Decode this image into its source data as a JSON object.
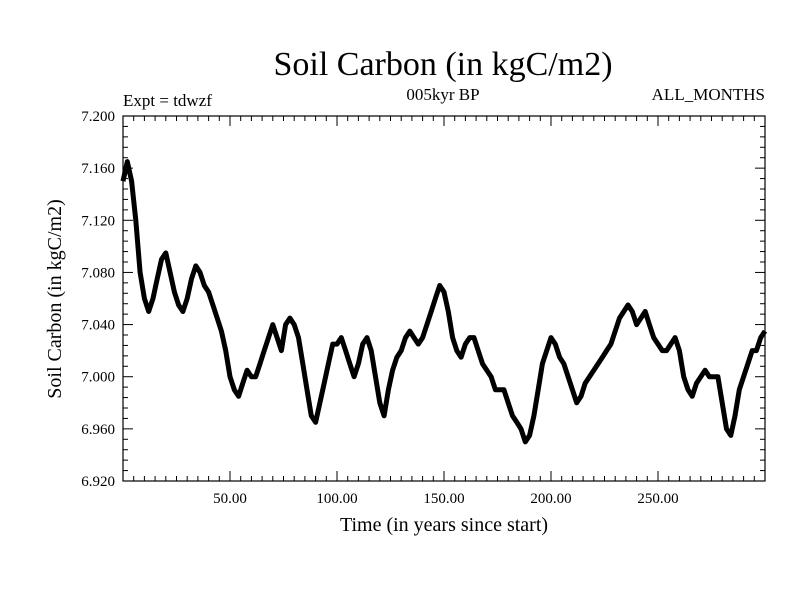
{
  "chart_data": {
    "type": "line",
    "title": "Soil Carbon (in kgC/m2)",
    "left_note": "Expt = tdwzf",
    "center_note": "005kyr BP",
    "right_note": "ALL_MONTHS",
    "xlabel": "Time (in years since start)",
    "ylabel": "Soil Carbon (in kgC/m2)",
    "xlim": [
      0,
      300
    ],
    "ylim": [
      6.92,
      7.2
    ],
    "x_ticks": [
      50,
      100,
      150,
      200,
      250
    ],
    "x_tick_labels": [
      "50.00",
      "100.00",
      "150.00",
      "200.00",
      "250.00"
    ],
    "y_ticks": [
      6.92,
      6.96,
      7.0,
      7.04,
      7.08,
      7.12,
      7.16,
      7.2
    ],
    "y_tick_labels": [
      "6.920",
      "6.960",
      "7.000",
      "7.040",
      "7.080",
      "7.120",
      "7.160",
      "7.200"
    ],
    "grid": false,
    "line_color": "#000000",
    "series": [
      {
        "x": [
          0,
          2,
          4,
          6,
          8,
          10,
          12,
          14,
          16,
          18,
          20,
          22,
          24,
          26,
          28,
          30,
          32,
          34,
          36,
          38,
          40,
          42,
          44,
          46,
          48,
          50,
          52,
          54,
          56,
          58,
          60,
          62,
          64,
          66,
          68,
          70,
          72,
          74,
          76,
          78,
          80,
          82,
          84,
          86,
          88,
          90,
          92,
          94,
          96,
          98,
          100,
          102,
          104,
          106,
          108,
          110,
          112,
          114,
          116,
          118,
          120,
          122,
          124,
          126,
          128,
          130,
          132,
          134,
          136,
          138,
          140,
          142,
          144,
          146,
          148,
          150,
          152,
          154,
          156,
          158,
          160,
          162,
          164,
          166,
          168,
          170,
          172,
          174,
          176,
          178,
          180,
          182,
          184,
          186,
          188,
          190,
          192,
          194,
          196,
          198,
          200,
          202,
          204,
          206,
          208,
          210,
          212,
          214,
          216,
          218,
          220,
          222,
          224,
          226,
          228,
          230,
          232,
          234,
          236,
          238,
          240,
          242,
          244,
          246,
          248,
          250,
          252,
          254,
          256,
          258,
          260,
          262,
          264,
          266,
          268,
          270,
          272,
          274,
          276,
          278,
          280,
          282,
          284,
          286,
          288,
          290,
          292,
          294,
          296,
          298,
          300
        ],
        "y": [
          7.15,
          7.165,
          7.15,
          7.12,
          7.08,
          7.06,
          7.05,
          7.06,
          7.075,
          7.09,
          7.095,
          7.08,
          7.065,
          7.055,
          7.05,
          7.06,
          7.075,
          7.085,
          7.08,
          7.07,
          7.065,
          7.055,
          7.045,
          7.035,
          7.02,
          7.0,
          6.99,
          6.985,
          6.995,
          7.005,
          7.0,
          7.0,
          7.01,
          7.02,
          7.03,
          7.04,
          7.03,
          7.02,
          7.04,
          7.045,
          7.04,
          7.03,
          7.01,
          6.99,
          6.97,
          6.965,
          6.98,
          6.995,
          7.01,
          7.025,
          7.025,
          7.03,
          7.02,
          7.01,
          7.0,
          7.01,
          7.025,
          7.03,
          7.02,
          7.0,
          6.98,
          6.97,
          6.99,
          7.005,
          7.015,
          7.02,
          7.03,
          7.035,
          7.03,
          7.025,
          7.03,
          7.04,
          7.05,
          7.06,
          7.07,
          7.065,
          7.05,
          7.03,
          7.02,
          7.015,
          7.025,
          7.03,
          7.03,
          7.02,
          7.01,
          7.005,
          7.0,
          6.99,
          6.99,
          6.99,
          6.98,
          6.97,
          6.965,
          6.96,
          6.95,
          6.955,
          6.97,
          6.99,
          7.01,
          7.02,
          7.03,
          7.025,
          7.015,
          7.01,
          7.0,
          6.99,
          6.98,
          6.985,
          6.995,
          7.0,
          7.005,
          7.01,
          7.015,
          7.02,
          7.025,
          7.035,
          7.045,
          7.05,
          7.055,
          7.05,
          7.04,
          7.045,
          7.05,
          7.04,
          7.03,
          7.025,
          7.02,
          7.02,
          7.025,
          7.03,
          7.02,
          7.0,
          6.99,
          6.985,
          6.995,
          7.0,
          7.005,
          7.0,
          7.0,
          7.0,
          6.98,
          6.96,
          6.955,
          6.97,
          6.99,
          7.0,
          7.01,
          7.02,
          7.02,
          7.03,
          7.035
        ]
      }
    ]
  }
}
